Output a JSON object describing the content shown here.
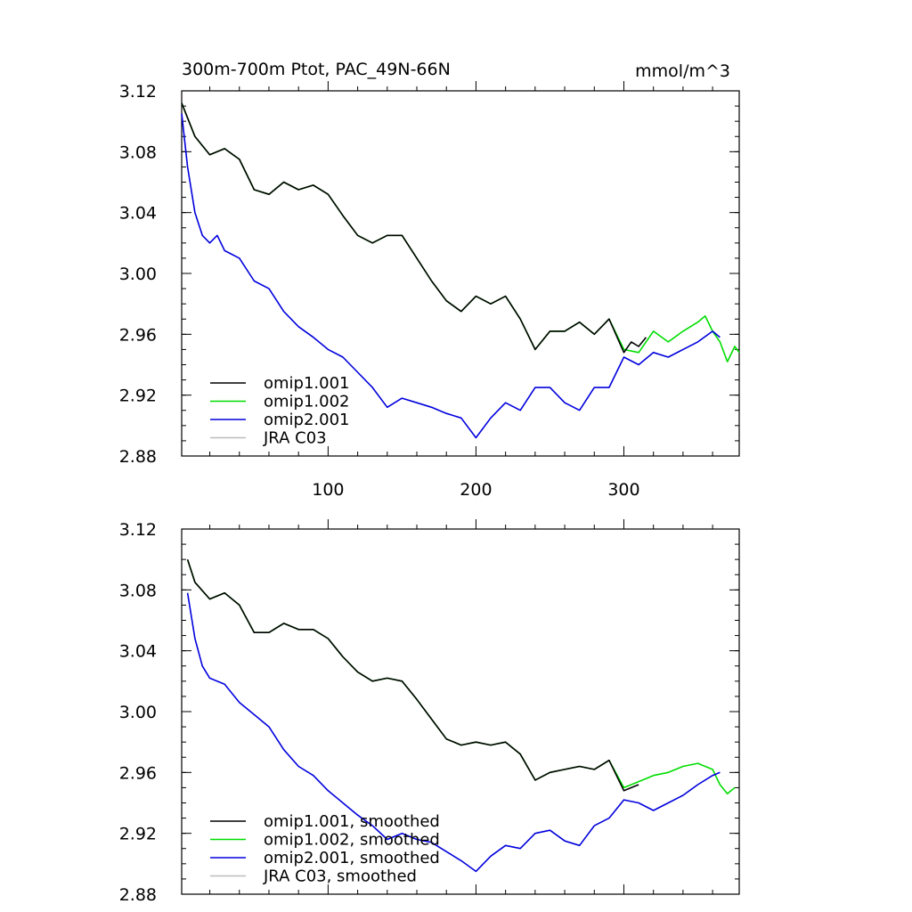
{
  "figure": {
    "title_left": "300m-700m Ptot, PAC_49N-66N",
    "title_right": "mmol/m^3"
  },
  "chart_data": [
    {
      "type": "line",
      "title": "300m-700m Ptot, PAC_49N-66N",
      "units": "mmol/m^3",
      "xlim": [
        1,
        378
      ],
      "ylim": [
        2.88,
        3.12
      ],
      "xticks": [
        100,
        200,
        300
      ],
      "xtick_labels": [
        "100",
        "200",
        "300"
      ],
      "yticks": [
        2.88,
        2.92,
        2.96,
        3.0,
        3.04,
        3.08,
        3.12
      ],
      "ytick_labels": [
        "2.88",
        "2.92",
        "2.96",
        "3.00",
        "3.04",
        "3.08",
        "3.12"
      ],
      "legend_position": "bottom-left",
      "series": [
        {
          "name": "omip1.001",
          "color": "#000000",
          "x": [
            1,
            10,
            20,
            30,
            40,
            50,
            60,
            70,
            80,
            90,
            100,
            110,
            120,
            130,
            140,
            150,
            160,
            170,
            180,
            190,
            200,
            210,
            220,
            230,
            240,
            250,
            260,
            270,
            280,
            290,
            300,
            305,
            310,
            315
          ],
          "y": [
            3.112,
            3.09,
            3.078,
            3.082,
            3.075,
            3.055,
            3.052,
            3.06,
            3.055,
            3.058,
            3.052,
            3.038,
            3.025,
            3.02,
            3.025,
            3.025,
            3.01,
            2.995,
            2.982,
            2.975,
            2.985,
            2.98,
            2.985,
            2.97,
            2.95,
            2.962,
            2.962,
            2.968,
            2.96,
            2.97,
            2.948,
            2.955,
            2.952,
            2.958
          ]
        },
        {
          "name": "omip1.002",
          "color": "#00dd00",
          "x": [
            1,
            10,
            20,
            30,
            40,
            50,
            60,
            70,
            80,
            90,
            100,
            110,
            120,
            130,
            140,
            150,
            160,
            170,
            180,
            190,
            200,
            210,
            220,
            230,
            240,
            250,
            260,
            270,
            280,
            290,
            300,
            310,
            320,
            330,
            340,
            350,
            355,
            360,
            365,
            370,
            375,
            378
          ],
          "y": [
            3.112,
            3.09,
            3.078,
            3.082,
            3.075,
            3.055,
            3.052,
            3.06,
            3.055,
            3.058,
            3.052,
            3.038,
            3.025,
            3.02,
            3.025,
            3.025,
            3.01,
            2.995,
            2.982,
            2.975,
            2.985,
            2.98,
            2.985,
            2.97,
            2.95,
            2.962,
            2.962,
            2.968,
            2.96,
            2.97,
            2.95,
            2.948,
            2.962,
            2.955,
            2.962,
            2.968,
            2.972,
            2.962,
            2.955,
            2.942,
            2.952,
            2.948
          ]
        },
        {
          "name": "omip2.001",
          "color": "#0000dd",
          "x": [
            1,
            5,
            10,
            15,
            20,
            25,
            30,
            40,
            50,
            60,
            70,
            80,
            90,
            100,
            110,
            120,
            130,
            140,
            150,
            160,
            170,
            180,
            190,
            200,
            210,
            220,
            230,
            240,
            250,
            260,
            270,
            280,
            290,
            300,
            310,
            320,
            330,
            340,
            350,
            360,
            365
          ],
          "y": [
            3.105,
            3.07,
            3.04,
            3.025,
            3.02,
            3.025,
            3.015,
            3.01,
            2.995,
            2.99,
            2.975,
            2.965,
            2.958,
            2.95,
            2.945,
            2.935,
            2.925,
            2.912,
            2.918,
            2.915,
            2.912,
            2.908,
            2.905,
            2.892,
            2.905,
            2.915,
            2.91,
            2.925,
            2.925,
            2.915,
            2.91,
            2.925,
            2.925,
            2.945,
            2.94,
            2.948,
            2.945,
            2.95,
            2.955,
            2.962,
            2.958
          ]
        },
        {
          "name": "JRA C03",
          "color": "#bbbbbb",
          "x": [],
          "y": []
        }
      ]
    },
    {
      "type": "line",
      "xlim": [
        1,
        378
      ],
      "ylim": [
        2.88,
        3.12
      ],
      "xticks": [
        100,
        200,
        300
      ],
      "xtick_labels": [
        "",
        "",
        ""
      ],
      "yticks": [
        2.88,
        2.92,
        2.96,
        3.0,
        3.04,
        3.08,
        3.12
      ],
      "ytick_labels": [
        "2.88",
        "2.92",
        "2.96",
        "3.00",
        "3.04",
        "3.08",
        "3.12"
      ],
      "legend_position": "bottom-left",
      "series": [
        {
          "name": "omip1.001, smoothed",
          "color": "#000000",
          "x": [
            5,
            10,
            20,
            30,
            40,
            50,
            60,
            70,
            80,
            90,
            100,
            110,
            120,
            130,
            140,
            150,
            160,
            170,
            180,
            190,
            200,
            210,
            220,
            230,
            240,
            250,
            260,
            270,
            280,
            290,
            300,
            305,
            310
          ],
          "y": [
            3.1,
            3.085,
            3.074,
            3.078,
            3.07,
            3.052,
            3.052,
            3.058,
            3.054,
            3.054,
            3.048,
            3.036,
            3.026,
            3.02,
            3.022,
            3.02,
            3.008,
            2.995,
            2.982,
            2.978,
            2.98,
            2.978,
            2.98,
            2.972,
            2.955,
            2.96,
            2.962,
            2.964,
            2.962,
            2.968,
            2.948,
            2.95,
            2.952
          ]
        },
        {
          "name": "omip1.002, smoothed",
          "color": "#00dd00",
          "x": [
            5,
            10,
            20,
            30,
            40,
            50,
            60,
            70,
            80,
            90,
            100,
            110,
            120,
            130,
            140,
            150,
            160,
            170,
            180,
            190,
            200,
            210,
            220,
            230,
            240,
            250,
            260,
            270,
            280,
            290,
            300,
            310,
            320,
            330,
            340,
            350,
            360,
            365,
            370,
            375
          ],
          "y": [
            3.1,
            3.085,
            3.074,
            3.078,
            3.07,
            3.052,
            3.052,
            3.058,
            3.054,
            3.054,
            3.048,
            3.036,
            3.026,
            3.02,
            3.022,
            3.02,
            3.008,
            2.995,
            2.982,
            2.978,
            2.98,
            2.978,
            2.98,
            2.972,
            2.955,
            2.96,
            2.962,
            2.964,
            2.962,
            2.968,
            2.95,
            2.954,
            2.958,
            2.96,
            2.964,
            2.966,
            2.962,
            2.952,
            2.946,
            2.95
          ]
        },
        {
          "name": "omip2.001, smoothed",
          "color": "#0000dd",
          "x": [
            5,
            10,
            15,
            20,
            30,
            40,
            50,
            60,
            70,
            80,
            90,
            100,
            110,
            120,
            130,
            140,
            150,
            160,
            170,
            180,
            190,
            200,
            210,
            220,
            230,
            240,
            250,
            260,
            270,
            280,
            290,
            300,
            310,
            320,
            330,
            340,
            350,
            360,
            365
          ],
          "y": [
            3.078,
            3.048,
            3.03,
            3.022,
            3.018,
            3.006,
            2.998,
            2.99,
            2.975,
            2.964,
            2.958,
            2.948,
            2.94,
            2.932,
            2.925,
            2.916,
            2.92,
            2.916,
            2.914,
            2.908,
            2.902,
            2.895,
            2.905,
            2.912,
            2.91,
            2.92,
            2.922,
            2.915,
            2.912,
            2.925,
            2.93,
            2.942,
            2.94,
            2.935,
            2.94,
            2.945,
            2.952,
            2.958,
            2.96
          ]
        },
        {
          "name": "JRA C03, smoothed",
          "color": "#bbbbbb",
          "x": [],
          "y": []
        }
      ]
    }
  ]
}
